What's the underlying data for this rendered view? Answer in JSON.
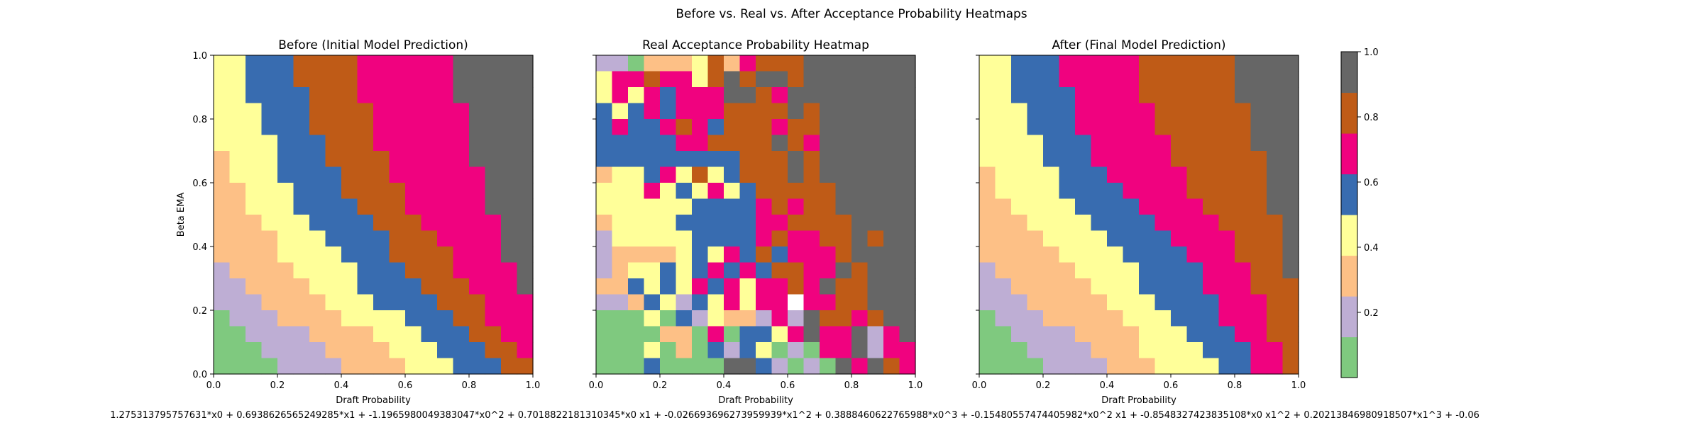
{
  "suptitle": "Before vs. Real vs. After Acceptance Probability Heatmaps",
  "formula": "1.275313795757631*x0 + 0.6938626565249285*x1 + -1.1965980049383047*x0^2 + 0.7018822181310345*x0 x1 + -0.026693696273959939*x1^2 + 0.3888460622765988*x0^3 + -0.15480557474405982*x0^2 x1 + -0.8548327423835108*x0 x1^2 + 0.20213846980918507*x1^3 + -0.06",
  "colors": {
    "cmap": [
      "#7fc97f",
      "#beaed4",
      "#fdc086",
      "#ffff99",
      "#386cb0",
      "#f0027f",
      "#bf5b17",
      "#666666"
    ],
    "nan": "#ffffff",
    "frame": "#000000"
  },
  "colorbar": {
    "range": [
      0,
      1
    ],
    "ticks": [
      "0.2",
      "0.4",
      "0.6",
      "0.8",
      "1.0"
    ]
  },
  "chart_data": [
    {
      "type": "heatmap",
      "title": "Before (Initial Model Prediction)",
      "xlabel": "Draft Probability",
      "ylabel": "Beta EMA",
      "x_range": [
        0,
        1
      ],
      "y_range": [
        0,
        1
      ],
      "x_ticks": [
        "0.0",
        "0.2",
        "0.4",
        "0.6",
        "0.8",
        "1.0"
      ],
      "y_ticks": [
        "0.0",
        "0.2",
        "0.4",
        "0.6",
        "0.8",
        "1.0"
      ],
      "grid": "20x20",
      "row_order": "top-to-bottom (Beta EMA 1.0 down to 0.0)",
      "cell_values_class_index": [
        [
          3,
          3,
          4,
          4,
          4,
          6,
          6,
          6,
          6,
          5,
          5,
          5,
          5,
          5,
          5,
          7,
          7,
          7,
          7,
          7
        ],
        [
          3,
          3,
          4,
          4,
          4,
          6,
          6,
          6,
          6,
          5,
          5,
          5,
          5,
          5,
          5,
          7,
          7,
          7,
          7,
          7
        ],
        [
          3,
          3,
          4,
          4,
          4,
          4,
          6,
          6,
          6,
          5,
          5,
          5,
          5,
          5,
          5,
          7,
          7,
          7,
          7,
          7
        ],
        [
          3,
          3,
          3,
          4,
          4,
          4,
          6,
          6,
          6,
          6,
          5,
          5,
          5,
          5,
          5,
          5,
          7,
          7,
          7,
          7
        ],
        [
          3,
          3,
          3,
          4,
          4,
          4,
          6,
          6,
          6,
          6,
          5,
          5,
          5,
          5,
          5,
          5,
          7,
          7,
          7,
          7
        ],
        [
          3,
          3,
          3,
          3,
          4,
          4,
          4,
          6,
          6,
          6,
          5,
          5,
          5,
          5,
          5,
          5,
          7,
          7,
          7,
          7
        ],
        [
          2,
          3,
          3,
          3,
          4,
          4,
          4,
          6,
          6,
          6,
          6,
          5,
          5,
          5,
          5,
          5,
          7,
          7,
          7,
          7
        ],
        [
          2,
          3,
          3,
          3,
          4,
          4,
          4,
          4,
          6,
          6,
          6,
          5,
          5,
          5,
          5,
          5,
          5,
          7,
          7,
          7
        ],
        [
          2,
          2,
          3,
          3,
          3,
          4,
          4,
          4,
          6,
          6,
          6,
          6,
          5,
          5,
          5,
          5,
          5,
          7,
          7,
          7
        ],
        [
          2,
          2,
          3,
          3,
          3,
          4,
          4,
          4,
          4,
          6,
          6,
          6,
          5,
          5,
          5,
          5,
          5,
          7,
          7,
          7
        ],
        [
          2,
          2,
          2,
          3,
          3,
          3,
          4,
          4,
          4,
          4,
          6,
          6,
          6,
          5,
          5,
          5,
          5,
          5,
          7,
          7
        ],
        [
          2,
          2,
          2,
          2,
          3,
          3,
          3,
          4,
          4,
          4,
          4,
          6,
          6,
          6,
          5,
          5,
          5,
          5,
          7,
          7
        ],
        [
          2,
          2,
          2,
          2,
          3,
          3,
          3,
          3,
          4,
          4,
          4,
          6,
          6,
          6,
          6,
          5,
          5,
          5,
          7,
          7
        ],
        [
          1,
          2,
          2,
          2,
          2,
          3,
          3,
          3,
          3,
          4,
          4,
          4,
          6,
          6,
          6,
          5,
          5,
          5,
          5,
          7
        ],
        [
          1,
          1,
          2,
          2,
          2,
          2,
          3,
          3,
          3,
          4,
          4,
          4,
          4,
          6,
          6,
          6,
          5,
          5,
          5,
          7
        ],
        [
          1,
          1,
          1,
          2,
          2,
          2,
          2,
          3,
          3,
          3,
          4,
          4,
          4,
          4,
          6,
          6,
          6,
          5,
          5,
          5
        ],
        [
          0,
          1,
          1,
          1,
          2,
          2,
          2,
          2,
          3,
          3,
          3,
          3,
          4,
          4,
          4,
          6,
          6,
          5,
          5,
          5
        ],
        [
          0,
          0,
          1,
          1,
          1,
          1,
          2,
          2,
          2,
          2,
          3,
          3,
          3,
          4,
          4,
          4,
          6,
          6,
          5,
          5
        ],
        [
          0,
          0,
          0,
          1,
          1,
          1,
          1,
          2,
          2,
          2,
          2,
          3,
          3,
          3,
          4,
          4,
          4,
          6,
          6,
          5
        ],
        [
          0,
          0,
          0,
          0,
          1,
          1,
          1,
          1,
          2,
          2,
          2,
          2,
          3,
          3,
          3,
          4,
          4,
          4,
          6,
          6
        ]
      ]
    },
    {
      "type": "heatmap",
      "title": "Real Acceptance Probability Heatmap",
      "xlabel": "Draft Probability",
      "ylabel": "",
      "x_range": [
        0,
        1
      ],
      "y_range": [
        0,
        1
      ],
      "x_ticks": [
        "0.0",
        "0.2",
        "0.4",
        "0.6",
        "0.8",
        "1.0"
      ],
      "y_ticks": [],
      "grid": "20x20",
      "row_order": "top-to-bottom (Beta EMA 1.0 down to 0.0)",
      "empty_cells": "-1",
      "cell_values_class_index": [
        [
          1,
          1,
          0,
          2,
          2,
          2,
          3,
          6,
          2,
          5,
          6,
          6,
          6,
          7,
          7,
          7,
          7,
          7,
          7,
          7
        ],
        [
          3,
          5,
          5,
          6,
          5,
          5,
          3,
          6,
          7,
          6,
          7,
          7,
          6,
          7,
          7,
          7,
          7,
          7,
          7,
          7
        ],
        [
          3,
          5,
          3,
          5,
          4,
          5,
          5,
          5,
          7,
          7,
          6,
          5,
          7,
          7,
          7,
          7,
          7,
          7,
          7,
          7
        ],
        [
          4,
          3,
          4,
          5,
          4,
          5,
          5,
          5,
          6,
          6,
          6,
          6,
          7,
          6,
          7,
          7,
          7,
          7,
          7,
          7
        ],
        [
          4,
          5,
          4,
          4,
          5,
          6,
          5,
          4,
          6,
          6,
          6,
          5,
          6,
          6,
          7,
          7,
          7,
          7,
          7,
          7
        ],
        [
          4,
          4,
          4,
          4,
          4,
          5,
          5,
          6,
          6,
          6,
          6,
          7,
          6,
          5,
          7,
          7,
          7,
          7,
          7,
          7
        ],
        [
          4,
          4,
          4,
          4,
          4,
          4,
          4,
          4,
          4,
          6,
          6,
          6,
          7,
          6,
          7,
          7,
          7,
          7,
          7,
          7
        ],
        [
          2,
          3,
          3,
          4,
          5,
          3,
          6,
          3,
          4,
          6,
          6,
          6,
          7,
          6,
          7,
          7,
          7,
          7,
          7,
          7
        ],
        [
          3,
          3,
          3,
          5,
          3,
          4,
          3,
          5,
          3,
          4,
          6,
          6,
          6,
          6,
          6,
          7,
          7,
          7,
          7,
          7
        ],
        [
          3,
          3,
          3,
          3,
          3,
          3,
          4,
          4,
          4,
          4,
          5,
          6,
          5,
          6,
          6,
          7,
          7,
          7,
          7,
          7
        ],
        [
          2,
          3,
          3,
          3,
          3,
          4,
          4,
          4,
          4,
          4,
          5,
          5,
          6,
          6,
          6,
          6,
          7,
          7,
          7,
          7
        ],
        [
          1,
          3,
          3,
          3,
          3,
          3,
          4,
          4,
          4,
          4,
          5,
          6,
          5,
          5,
          6,
          6,
          7,
          6,
          7,
          7
        ],
        [
          1,
          2,
          2,
          2,
          2,
          3,
          4,
          3,
          5,
          4,
          6,
          4,
          5,
          5,
          5,
          6,
          7,
          7,
          7,
          7
        ],
        [
          1,
          2,
          3,
          3,
          4,
          3,
          4,
          5,
          4,
          5,
          4,
          6,
          6,
          5,
          5,
          7,
          6,
          7,
          7,
          7
        ],
        [
          2,
          2,
          4,
          3,
          4,
          3,
          5,
          4,
          5,
          3,
          5,
          5,
          6,
          5,
          7,
          6,
          6,
          7,
          7,
          7
        ],
        [
          1,
          1,
          2,
          4,
          3,
          1,
          4,
          3,
          5,
          3,
          5,
          5,
          -1,
          5,
          5,
          6,
          6,
          7,
          7,
          7
        ],
        [
          0,
          0,
          0,
          3,
          0,
          4,
          1,
          3,
          2,
          2,
          1,
          5,
          1,
          7,
          6,
          6,
          5,
          6,
          7,
          7
        ],
        [
          0,
          0,
          0,
          0,
          2,
          2,
          0,
          5,
          0,
          4,
          4,
          3,
          5,
          7,
          5,
          5,
          7,
          1,
          5,
          7
        ],
        [
          0,
          0,
          0,
          3,
          0,
          2,
          0,
          4,
          1,
          4,
          3,
          0,
          1,
          0,
          5,
          5,
          7,
          1,
          5,
          5
        ],
        [
          0,
          0,
          0,
          4,
          0,
          0,
          0,
          0,
          7,
          7,
          4,
          1,
          0,
          1,
          0,
          7,
          5,
          7,
          6,
          5
        ]
      ]
    },
    {
      "type": "heatmap",
      "title": "After (Final Model Prediction)",
      "xlabel": "Draft Probability",
      "ylabel": "",
      "x_range": [
        0,
        1
      ],
      "y_range": [
        0,
        1
      ],
      "x_ticks": [
        "0.0",
        "0.2",
        "0.4",
        "0.6",
        "0.8",
        "1.0"
      ],
      "y_ticks": [],
      "grid": "20x20",
      "row_order": "top-to-bottom (Beta EMA 1.0 down to 0.0)",
      "cell_values_class_index": [
        [
          3,
          3,
          4,
          4,
          4,
          5,
          5,
          5,
          5,
          5,
          6,
          6,
          6,
          6,
          6,
          6,
          7,
          7,
          7,
          7
        ],
        [
          3,
          3,
          4,
          4,
          4,
          5,
          5,
          5,
          5,
          5,
          6,
          6,
          6,
          6,
          6,
          6,
          7,
          7,
          7,
          7
        ],
        [
          3,
          3,
          4,
          4,
          4,
          4,
          5,
          5,
          5,
          5,
          6,
          6,
          6,
          6,
          6,
          6,
          7,
          7,
          7,
          7
        ],
        [
          3,
          3,
          3,
          4,
          4,
          4,
          5,
          5,
          5,
          5,
          5,
          6,
          6,
          6,
          6,
          6,
          6,
          7,
          7,
          7
        ],
        [
          3,
          3,
          3,
          4,
          4,
          4,
          5,
          5,
          5,
          5,
          5,
          6,
          6,
          6,
          6,
          6,
          6,
          7,
          7,
          7
        ],
        [
          3,
          3,
          3,
          3,
          4,
          4,
          4,
          5,
          5,
          5,
          5,
          5,
          6,
          6,
          6,
          6,
          6,
          7,
          7,
          7
        ],
        [
          3,
          3,
          3,
          3,
          4,
          4,
          4,
          5,
          5,
          5,
          5,
          5,
          6,
          6,
          6,
          6,
          6,
          6,
          7,
          7
        ],
        [
          2,
          3,
          3,
          3,
          3,
          4,
          4,
          4,
          5,
          5,
          5,
          5,
          5,
          6,
          6,
          6,
          6,
          6,
          7,
          7
        ],
        [
          2,
          3,
          3,
          3,
          3,
          4,
          4,
          4,
          4,
          5,
          5,
          5,
          5,
          6,
          6,
          6,
          6,
          6,
          7,
          7
        ],
        [
          2,
          2,
          3,
          3,
          3,
          3,
          4,
          4,
          4,
          4,
          5,
          5,
          5,
          5,
          6,
          6,
          6,
          6,
          7,
          7
        ],
        [
          2,
          2,
          2,
          3,
          3,
          3,
          3,
          4,
          4,
          4,
          4,
          5,
          5,
          5,
          5,
          6,
          6,
          6,
          6,
          7
        ],
        [
          2,
          2,
          2,
          2,
          3,
          3,
          3,
          3,
          4,
          4,
          4,
          4,
          5,
          5,
          5,
          5,
          6,
          6,
          6,
          7
        ],
        [
          2,
          2,
          2,
          2,
          2,
          3,
          3,
          3,
          3,
          4,
          4,
          4,
          4,
          5,
          5,
          5,
          6,
          6,
          6,
          7
        ],
        [
          1,
          2,
          2,
          2,
          2,
          2,
          3,
          3,
          3,
          3,
          4,
          4,
          4,
          4,
          5,
          5,
          5,
          6,
          6,
          7
        ],
        [
          1,
          1,
          2,
          2,
          2,
          2,
          2,
          3,
          3,
          3,
          4,
          4,
          4,
          4,
          5,
          5,
          5,
          6,
          6,
          6
        ],
        [
          1,
          1,
          1,
          2,
          2,
          2,
          2,
          2,
          3,
          3,
          3,
          4,
          4,
          4,
          4,
          5,
          5,
          5,
          6,
          6
        ],
        [
          0,
          1,
          1,
          1,
          2,
          2,
          2,
          2,
          2,
          3,
          3,
          3,
          4,
          4,
          4,
          5,
          5,
          5,
          6,
          6
        ],
        [
          0,
          0,
          1,
          1,
          1,
          1,
          2,
          2,
          2,
          2,
          3,
          3,
          3,
          4,
          4,
          4,
          5,
          5,
          6,
          6
        ],
        [
          0,
          0,
          0,
          1,
          1,
          1,
          1,
          2,
          2,
          2,
          3,
          3,
          3,
          3,
          4,
          4,
          4,
          5,
          5,
          6
        ],
        [
          0,
          0,
          0,
          0,
          1,
          1,
          1,
          1,
          2,
          2,
          2,
          3,
          3,
          3,
          3,
          4,
          4,
          5,
          5,
          6
        ]
      ]
    }
  ]
}
